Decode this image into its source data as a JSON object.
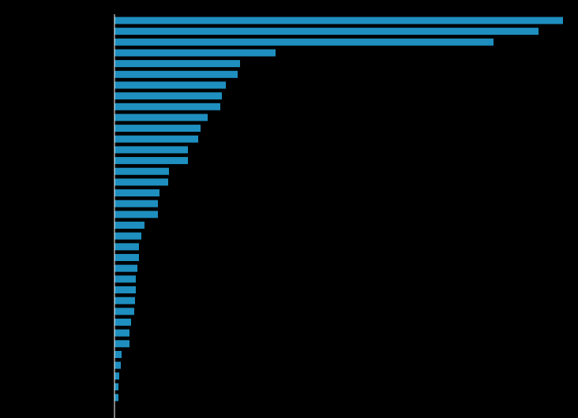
{
  "chart_data": {
    "type": "barh",
    "categories": [
      null,
      null,
      null,
      null,
      null,
      null,
      null,
      null,
      null,
      null,
      null,
      null,
      null,
      null,
      null,
      null,
      null,
      null,
      null,
      null,
      null,
      null,
      null,
      null,
      null,
      null,
      null,
      null,
      null,
      null,
      null,
      null,
      null,
      null,
      null,
      null
    ],
    "values": [
      568,
      537,
      480,
      204,
      159,
      156,
      141,
      136,
      134,
      118,
      109,
      106,
      93,
      93,
      69,
      68,
      57,
      55,
      55,
      38,
      34,
      31,
      31,
      29,
      27,
      27,
      26,
      25,
      21,
      19,
      19,
      9,
      8,
      6,
      5,
      5
    ],
    "color": "#1e8fbf",
    "xlim": [
      0,
      587
    ]
  }
}
